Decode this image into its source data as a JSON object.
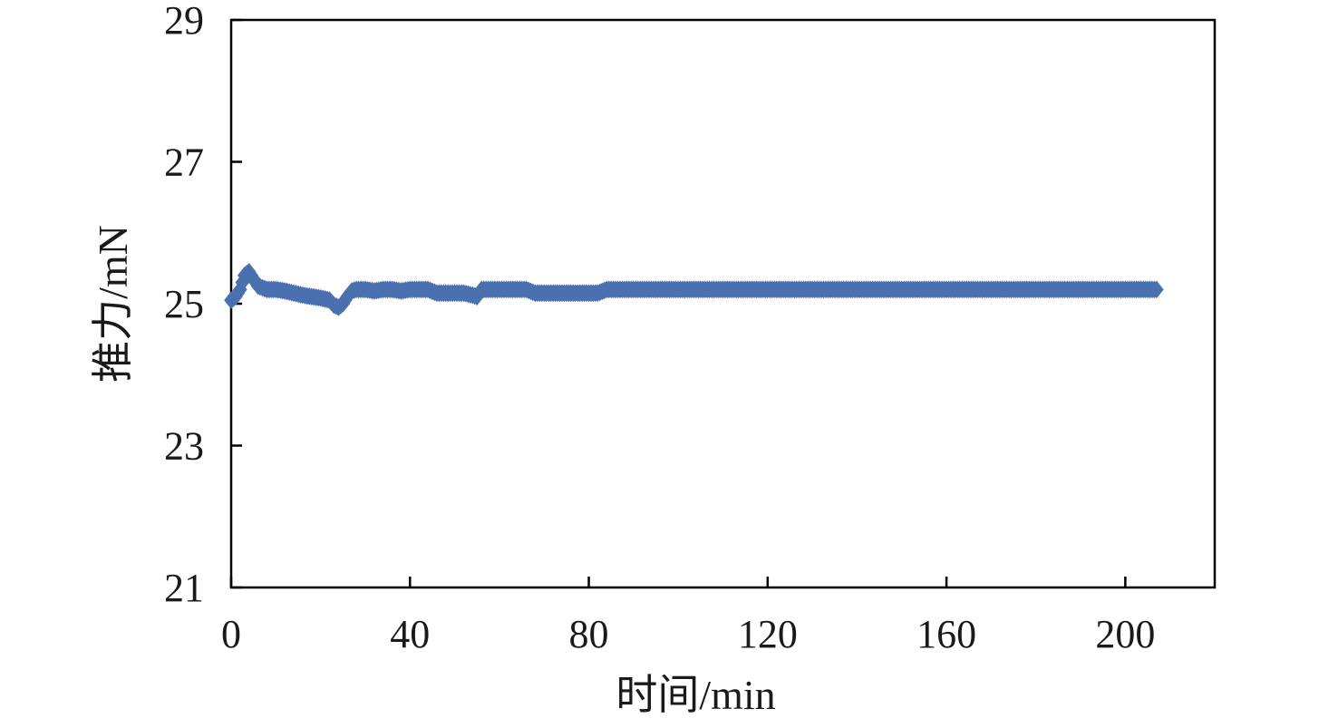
{
  "chart_data": {
    "type": "scatter",
    "title": "",
    "xlabel": "时间/min",
    "ylabel": "推力/mN",
    "xlim": [
      0,
      220
    ],
    "ylim": [
      21,
      29
    ],
    "x_ticks": [
      "0",
      "40",
      "80",
      "120",
      "160",
      "200"
    ],
    "y_ticks": [
      "21",
      "23",
      "25",
      "27",
      "29"
    ],
    "grid": false,
    "legend": "none",
    "marker": "diamond",
    "color": "#4a70b0",
    "series": [
      {
        "x": [
          0,
          1,
          2,
          3,
          4,
          5,
          6,
          8,
          10,
          12,
          14,
          16,
          18,
          20,
          22,
          23,
          24,
          25,
          26,
          27,
          28,
          30,
          32,
          34,
          36,
          38,
          40,
          42,
          44,
          46,
          48,
          50,
          52,
          54,
          55,
          56,
          58,
          60,
          62,
          64,
          66,
          68,
          70,
          72,
          74,
          76,
          78,
          80,
          82,
          84,
          86,
          88,
          90,
          95,
          100,
          105,
          110,
          115,
          120,
          125,
          130,
          135,
          140,
          145,
          150,
          155,
          160,
          165,
          170,
          175,
          180,
          185,
          190,
          195,
          200,
          205,
          207
        ],
        "y": [
          25.05,
          25.1,
          25.2,
          25.4,
          25.45,
          25.35,
          25.25,
          25.2,
          25.2,
          25.18,
          25.15,
          25.12,
          25.1,
          25.08,
          25.05,
          24.98,
          24.95,
          25.0,
          25.1,
          25.18,
          25.2,
          25.2,
          25.18,
          25.2,
          25.2,
          25.18,
          25.2,
          25.2,
          25.2,
          25.15,
          25.15,
          25.15,
          25.15,
          25.12,
          25.1,
          25.2,
          25.2,
          25.2,
          25.2,
          25.2,
          25.2,
          25.15,
          25.15,
          25.15,
          25.15,
          25.15,
          25.15,
          25.15,
          25.15,
          25.2,
          25.2,
          25.2,
          25.2,
          25.2,
          25.2,
          25.2,
          25.2,
          25.2,
          25.2,
          25.2,
          25.2,
          25.2,
          25.2,
          25.2,
          25.2,
          25.2,
          25.2,
          25.2,
          25.2,
          25.2,
          25.2,
          25.2,
          25.2,
          25.2,
          25.2,
          25.2,
          25.2
        ]
      }
    ]
  }
}
